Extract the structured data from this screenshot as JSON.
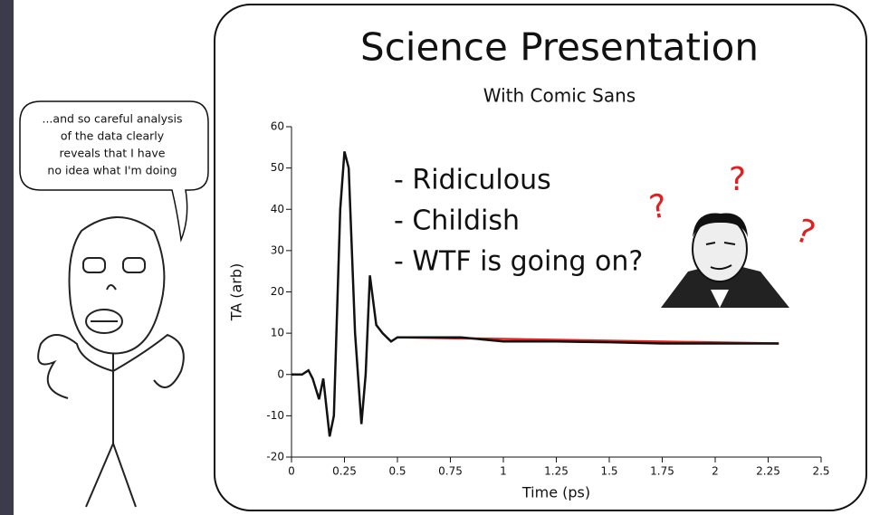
{
  "speech_bubble": {
    "lines": [
      "...and so careful analysis",
      "of the data clearly",
      "reveals that I have",
      "no idea what I'm doing"
    ]
  },
  "chart_data": {
    "type": "line",
    "title": "Science Presentation",
    "subtitle": "With Comic Sans",
    "annotations": [
      "- Ridiculous",
      "- Childish",
      "- WTF is going on?"
    ],
    "marks": [
      "?",
      "?",
      "?"
    ],
    "xlabel": "Time (ps)",
    "ylabel": "TA (arb)",
    "xlim": [
      0,
      2.5
    ],
    "xticks": [
      0,
      0.25,
      0.5,
      0.75,
      1,
      1.25,
      1.5,
      1.75,
      2,
      2.25,
      2.5
    ],
    "ylim": [
      -20,
      60
    ],
    "yticks": [
      -20,
      -10,
      0,
      10,
      20,
      30,
      40,
      50,
      60
    ],
    "series": [
      {
        "color": "#e02020",
        "x": [
          0.5,
          2.3
        ],
        "values": [
          9,
          7.5
        ]
      },
      {
        "color": "#111111",
        "x": [
          0,
          0.05,
          0.08,
          0.1,
          0.13,
          0.15,
          0.18,
          0.2,
          0.23,
          0.25,
          0.27,
          0.3,
          0.33,
          0.35,
          0.37,
          0.4,
          0.43,
          0.47,
          0.5,
          0.6,
          0.7,
          0.8,
          0.9,
          1.0,
          1.25,
          1.5,
          1.75,
          2.0,
          2.3
        ],
        "values": [
          0,
          0,
          1,
          -1,
          -6,
          -1,
          -15,
          -10,
          40,
          54,
          50,
          10,
          -12,
          0,
          24,
          12,
          10,
          8,
          9,
          9,
          9,
          9,
          8.5,
          8,
          8,
          7.8,
          7.5,
          7.5,
          7.5
        ]
      }
    ]
  }
}
